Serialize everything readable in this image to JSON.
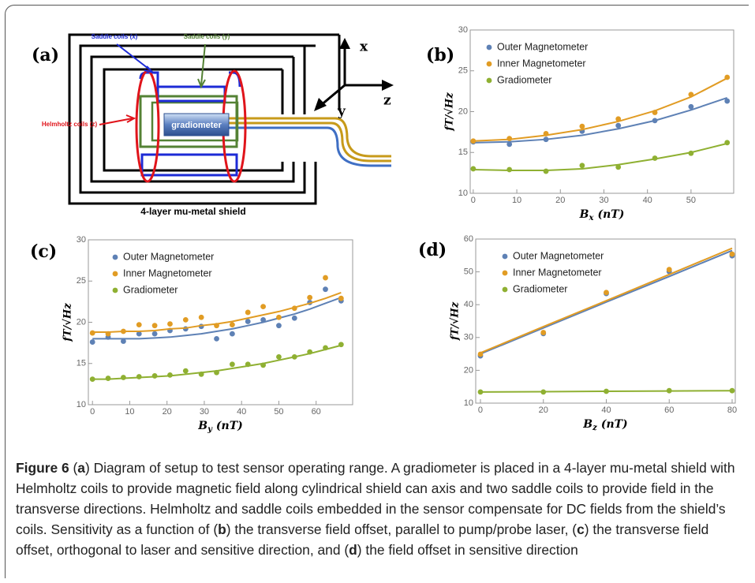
{
  "diagram": {
    "panel_label": "(a)",
    "saddle_x": "Saddle coils (x)",
    "saddle_y": "Saddle coils (y)",
    "helmholtz": "Helmholtz coils (z)",
    "gradiometer": "gradiometer",
    "shield": "4-layer mu-metal shield",
    "axis_x": "x",
    "axis_y": "y",
    "axis_z": "z"
  },
  "chart_data": [
    {
      "type": "scatter",
      "panel_label": "(b)",
      "ylabel": "fT/√Hz",
      "xlabel_symbol": "B",
      "xlabel_subscript": "x",
      "xlabel_unit": "(nT)",
      "x": [
        0,
        8.3,
        16.7,
        25,
        33.3,
        41.7,
        50,
        58.3
      ],
      "series": [
        {
          "name": "Outer Magnetometer",
          "color": "#5e81b5",
          "values": [
            16.3,
            16.0,
            16.6,
            17.6,
            18.3,
            18.9,
            20.6,
            21.3
          ],
          "fit": [
            16.2,
            16.3,
            16.6,
            17.1,
            17.9,
            18.9,
            20.2,
            21.7
          ]
        },
        {
          "name": "Inner Magnetometer",
          "color": "#e19c24",
          "values": [
            16.4,
            16.7,
            17.3,
            18.2,
            19.1,
            19.9,
            22.1,
            24.2
          ],
          "fit": [
            16.4,
            16.6,
            17.1,
            17.8,
            18.8,
            20.1,
            21.8,
            24.1
          ]
        },
        {
          "name": "Gradiometer",
          "color": "#8fb032",
          "values": [
            13.0,
            12.9,
            12.7,
            13.4,
            13.2,
            14.3,
            14.9,
            16.2
          ],
          "fit": [
            12.9,
            12.8,
            12.8,
            13.0,
            13.5,
            14.2,
            15.0,
            16.1
          ]
        }
      ],
      "xlim": [
        -0.7,
        59.8
      ],
      "ylim": [
        10,
        30
      ],
      "xticks": [
        0,
        10,
        20,
        30,
        40,
        50
      ],
      "yticks": [
        10,
        15,
        20,
        25,
        30
      ]
    },
    {
      "type": "scatter",
      "panel_label": "(c)",
      "ylabel": "fT/√Hz",
      "xlabel_symbol": "B",
      "xlabel_subscript": "y",
      "xlabel_unit": "(nT)",
      "x": [
        0,
        4.2,
        8.3,
        12.5,
        16.7,
        20.8,
        25,
        29.2,
        33.3,
        37.5,
        41.7,
        45.8,
        50,
        54.2,
        58.3,
        62.5,
        66.7
      ],
      "series": [
        {
          "name": "Outer Magnetometer",
          "color": "#5e81b5",
          "values": [
            17.6,
            18.2,
            17.7,
            18.6,
            18.6,
            19.0,
            19.2,
            19.5,
            18.0,
            18.6,
            20.1,
            20.3,
            19.6,
            20.5,
            22.4,
            24.0,
            22.6
          ],
          "fit": [
            18.0,
            18.0,
            18.0,
            18.0,
            18.1,
            18.2,
            18.4,
            18.6,
            18.9,
            19.2,
            19.6,
            20.0,
            20.5,
            21.0,
            21.6,
            22.3,
            23.0
          ]
        },
        {
          "name": "Inner Magnetometer",
          "color": "#e19c24",
          "values": [
            18.7,
            18.6,
            18.9,
            19.7,
            19.6,
            19.8,
            20.3,
            20.6,
            19.6,
            19.7,
            21.2,
            21.9,
            20.6,
            21.7,
            23.0,
            25.4,
            22.9
          ],
          "fit": [
            18.8,
            18.8,
            18.9,
            18.9,
            19.0,
            19.2,
            19.3,
            19.6,
            19.8,
            20.1,
            20.5,
            20.9,
            21.3,
            21.8,
            22.3,
            22.9,
            23.6
          ]
        },
        {
          "name": "Gradiometer",
          "color": "#8fb032",
          "values": [
            13.1,
            13.2,
            13.3,
            13.4,
            13.5,
            13.6,
            14.1,
            13.7,
            13.9,
            14.9,
            14.9,
            14.8,
            15.8,
            15.8,
            16.4,
            16.9,
            17.3
          ],
          "fit": [
            13.1,
            13.1,
            13.2,
            13.3,
            13.4,
            13.5,
            13.7,
            13.9,
            14.1,
            14.4,
            14.7,
            15.0,
            15.4,
            15.8,
            16.2,
            16.7,
            17.2
          ]
        }
      ],
      "xlim": [
        -1.1,
        69.8
      ],
      "ylim": [
        10,
        30
      ],
      "xticks": [
        0,
        10,
        20,
        30,
        40,
        50,
        60
      ],
      "yticks": [
        10,
        15,
        20,
        25,
        30
      ]
    },
    {
      "type": "scatter",
      "panel_label": "(d)",
      "ylabel": "fT/√Hz",
      "xlabel_symbol": "B",
      "xlabel_subscript": "z",
      "xlabel_unit": "(nT)",
      "x": [
        0,
        20,
        40,
        60,
        80
      ],
      "series": [
        {
          "name": "Outer Magnetometer",
          "color": "#5e81b5",
          "values": [
            24.4,
            31.2,
            43.4,
            50.1,
            54.9
          ],
          "fit": [
            25.0,
            32.9,
            40.8,
            48.6,
            56.5
          ]
        },
        {
          "name": "Inner Magnetometer",
          "color": "#e19c24",
          "values": [
            24.9,
            31.5,
            43.7,
            50.7,
            55.4
          ],
          "fit": [
            25.3,
            33.3,
            41.2,
            49.2,
            57.2
          ]
        },
        {
          "name": "Gradiometer",
          "color": "#8fb032",
          "values": [
            13.4,
            13.4,
            13.6,
            13.8,
            13.8
          ],
          "fit": [
            13.4,
            13.5,
            13.6,
            13.7,
            13.8
          ]
        }
      ],
      "xlim": [
        -1.5,
        81
      ],
      "ylim": [
        10,
        60
      ],
      "xticks": [
        0,
        20,
        40,
        60,
        80
      ],
      "yticks": [
        10,
        20,
        30,
        40,
        50,
        60
      ]
    }
  ],
  "caption": [
    {
      "text": "Figure 6",
      "bold": true
    },
    {
      "text": "  ("
    },
    {
      "text": "a",
      "bold": true
    },
    {
      "text": ") Diagram of setup to test sensor operating range. A gradiometer is placed in a 4-layer mu-metal shield with Helmholtz coils to provide magnetic field along cylindrical shield can axis and two saddle coils to provide field in the transverse directions. Helmholtz and saddle coils embedded in the sensor compensate for DC fields from the shield’s coils. Sensitivity as a function of ("
    },
    {
      "text": "b",
      "bold": true
    },
    {
      "text": ") the transverse field offset, parallel to pump/probe laser, ("
    },
    {
      "text": "c",
      "bold": true
    },
    {
      "text": ") the transverse field offset, orthogonal to laser and sensitive direction, and ("
    },
    {
      "text": "d",
      "bold": true
    },
    {
      "text": ") the field offset in sensitive direction"
    }
  ]
}
